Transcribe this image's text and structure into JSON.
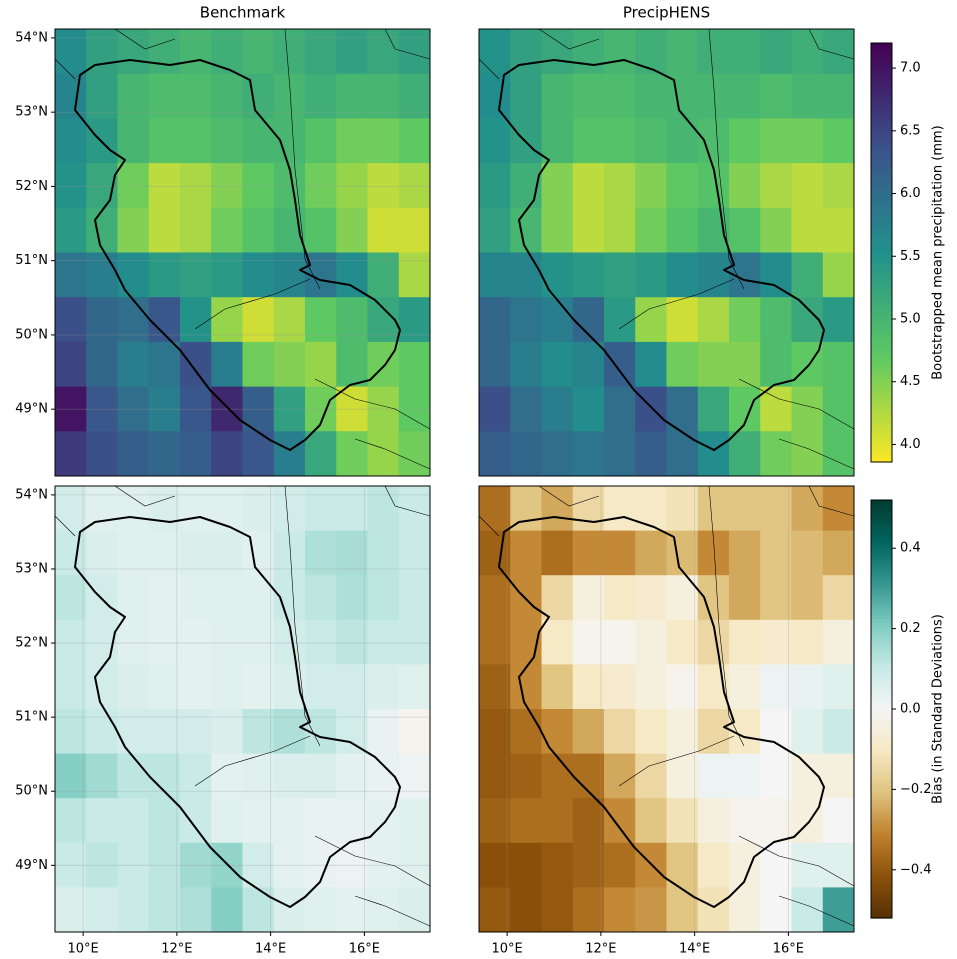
{
  "chart_data": [
    {
      "type": "heatmap",
      "title": "Benchmark",
      "colormap": "viridis_r",
      "xlim": [
        9.4,
        17.4
      ],
      "ylim": [
        48.1,
        54.12
      ],
      "yticks": [
        {
          "value": 49,
          "label": "49°N"
        },
        {
          "value": 50,
          "label": "50°N"
        },
        {
          "value": 51,
          "label": "51°N"
        },
        {
          "value": 52,
          "label": "52°N"
        },
        {
          "value": 53,
          "label": "53°N"
        },
        {
          "value": 54,
          "label": "54°N"
        }
      ],
      "values": [
        [
          5.6,
          5.3,
          5.2,
          5.1,
          5.0,
          5.1,
          5.0,
          5.1,
          5.2,
          5.3,
          5.2,
          5.3
        ],
        [
          5.7,
          5.3,
          5.0,
          4.9,
          4.9,
          5.0,
          5.1,
          5.0,
          5.1,
          5.0,
          5.0,
          5.1
        ],
        [
          5.6,
          5.4,
          5.0,
          4.8,
          4.8,
          4.9,
          5.0,
          5.0,
          4.8,
          4.6,
          4.6,
          4.7
        ],
        [
          5.5,
          5.2,
          4.6,
          4.2,
          4.3,
          4.5,
          4.7,
          4.9,
          4.6,
          4.4,
          4.2,
          4.3
        ],
        [
          5.4,
          5.1,
          4.5,
          4.2,
          4.3,
          4.6,
          4.8,
          5.0,
          4.8,
          4.5,
          4.1,
          4.1
        ],
        [
          5.9,
          5.8,
          5.6,
          5.4,
          5.3,
          5.4,
          5.6,
          5.7,
          5.9,
          5.6,
          5.1,
          4.3
        ],
        [
          6.4,
          6.1,
          6.0,
          6.3,
          5.5,
          4.4,
          4.1,
          4.3,
          4.7,
          4.9,
          5.2,
          5.4
        ],
        [
          6.5,
          6.1,
          5.8,
          5.9,
          6.4,
          5.8,
          4.6,
          4.5,
          4.4,
          4.9,
          4.6,
          4.7
        ],
        [
          7.0,
          6.3,
          6.0,
          5.8,
          6.3,
          6.8,
          6.2,
          5.3,
          4.6,
          4.1,
          4.4,
          4.7
        ],
        [
          6.6,
          6.4,
          6.2,
          6.1,
          6.2,
          6.5,
          6.3,
          5.8,
          5.2,
          4.6,
          4.4,
          4.6
        ]
      ]
    },
    {
      "type": "heatmap",
      "title": "PrecipHENS",
      "colormap": "viridis_r",
      "xlim": [
        9.4,
        17.4
      ],
      "ylim": [
        48.1,
        54.12
      ],
      "values": [
        [
          5.5,
          5.3,
          5.2,
          5.1,
          5.0,
          5.1,
          5.0,
          5.1,
          5.1,
          5.2,
          5.1,
          5.2
        ],
        [
          5.6,
          5.3,
          5.0,
          4.9,
          4.9,
          5.0,
          5.0,
          5.0,
          5.0,
          4.9,
          5.0,
          5.0
        ],
        [
          5.5,
          5.3,
          5.0,
          4.8,
          4.8,
          4.9,
          5.0,
          4.9,
          4.7,
          4.6,
          4.6,
          4.7
        ],
        [
          5.4,
          5.1,
          4.5,
          4.2,
          4.3,
          4.5,
          4.7,
          4.8,
          4.5,
          4.3,
          4.2,
          4.3
        ],
        [
          5.3,
          5.0,
          4.5,
          4.2,
          4.3,
          4.6,
          4.8,
          5.0,
          4.8,
          4.5,
          4.2,
          4.2
        ],
        [
          5.7,
          5.7,
          5.5,
          5.4,
          5.3,
          5.4,
          5.6,
          5.7,
          5.9,
          5.6,
          5.1,
          4.4
        ],
        [
          6.1,
          5.9,
          5.8,
          6.1,
          5.4,
          4.4,
          4.1,
          4.3,
          4.6,
          4.9,
          5.2,
          5.4
        ],
        [
          6.1,
          5.8,
          5.6,
          5.7,
          6.2,
          5.6,
          4.6,
          4.5,
          4.5,
          4.9,
          4.7,
          4.8
        ],
        [
          6.4,
          6.0,
          5.8,
          5.6,
          6.0,
          6.4,
          6.0,
          5.2,
          4.7,
          4.2,
          4.5,
          4.8
        ],
        [
          6.2,
          6.1,
          6.0,
          5.9,
          6.0,
          6.2,
          6.0,
          5.6,
          5.1,
          4.6,
          4.5,
          4.8
        ]
      ]
    },
    {
      "type": "heatmap",
      "colormap": "BrBG",
      "xlim": [
        9.4,
        17.4
      ],
      "ylim": [
        48.1,
        54.12
      ],
      "yticks": [
        {
          "value": 49,
          "label": "49°N"
        },
        {
          "value": 50,
          "label": "50°N"
        },
        {
          "value": 51,
          "label": "51°N"
        },
        {
          "value": 52,
          "label": "52°N"
        },
        {
          "value": 53,
          "label": "53°N"
        },
        {
          "value": 54,
          "label": "54°N"
        }
      ],
      "xticks": [
        {
          "value": 10,
          "label": "10°E"
        },
        {
          "value": 12,
          "label": "12°E"
        },
        {
          "value": 14,
          "label": "14°E"
        },
        {
          "value": 16,
          "label": "16°E"
        }
      ],
      "values": [
        [
          0.08,
          0.05,
          0.05,
          0.06,
          0.05,
          0.05,
          0.06,
          0.08,
          0.1,
          0.1,
          0.12,
          0.1
        ],
        [
          0.1,
          0.06,
          0.05,
          0.05,
          0.06,
          0.06,
          0.05,
          0.1,
          0.14,
          0.15,
          0.12,
          0.1
        ],
        [
          0.12,
          0.08,
          0.05,
          0.04,
          0.05,
          0.05,
          0.05,
          0.1,
          0.12,
          0.14,
          0.12,
          0.1
        ],
        [
          0.1,
          0.08,
          0.05,
          0.04,
          0.04,
          0.05,
          0.05,
          0.08,
          0.1,
          0.12,
          0.1,
          0.1
        ],
        [
          0.1,
          0.08,
          0.06,
          0.05,
          0.04,
          0.05,
          0.04,
          0.06,
          0.08,
          0.08,
          0.06,
          0.05
        ],
        [
          0.12,
          0.1,
          0.08,
          0.08,
          0.08,
          0.06,
          0.12,
          0.14,
          0.12,
          0.08,
          0.03,
          -0.02
        ],
        [
          0.2,
          0.16,
          0.12,
          0.12,
          0.1,
          0.04,
          0.05,
          0.06,
          0.06,
          0.04,
          0.03,
          0.02
        ],
        [
          0.12,
          0.1,
          0.1,
          0.12,
          0.1,
          0.05,
          0.04,
          0.04,
          0.03,
          0.03,
          0.04,
          0.05
        ],
        [
          0.1,
          0.12,
          0.1,
          0.12,
          0.16,
          0.18,
          0.08,
          0.04,
          0.03,
          0.02,
          0.04,
          0.05
        ],
        [
          0.06,
          0.08,
          0.1,
          0.12,
          0.14,
          0.2,
          0.12,
          0.06,
          0.05,
          0.04,
          0.05,
          0.06
        ]
      ]
    },
    {
      "type": "heatmap",
      "colormap": "BrBG",
      "xlim": [
        9.4,
        17.4
      ],
      "ylim": [
        48.1,
        54.12
      ],
      "xticks": [
        {
          "value": 10,
          "label": "10°E"
        },
        {
          "value": 12,
          "label": "12°E"
        },
        {
          "value": 14,
          "label": "14°E"
        },
        {
          "value": 16,
          "label": "16°E"
        }
      ],
      "values": [
        [
          -0.35,
          -0.2,
          -0.25,
          -0.15,
          -0.1,
          -0.1,
          -0.12,
          -0.2,
          -0.2,
          -0.2,
          -0.25,
          -0.3
        ],
        [
          -0.38,
          -0.3,
          -0.35,
          -0.3,
          -0.3,
          -0.25,
          -0.22,
          -0.3,
          -0.25,
          -0.2,
          -0.22,
          -0.25
        ],
        [
          -0.35,
          -0.3,
          -0.15,
          -0.05,
          -0.1,
          -0.08,
          -0.05,
          -0.2,
          -0.25,
          -0.2,
          -0.22,
          -0.15
        ],
        [
          -0.35,
          -0.3,
          -0.1,
          -0.02,
          -0.02,
          -0.05,
          -0.1,
          -0.15,
          -0.1,
          -0.08,
          -0.1,
          -0.05
        ],
        [
          -0.38,
          -0.3,
          -0.2,
          -0.1,
          -0.08,
          -0.05,
          -0.02,
          -0.1,
          -0.05,
          0.02,
          0.03,
          0.05
        ],
        [
          -0.4,
          -0.35,
          -0.3,
          -0.25,
          -0.15,
          -0.1,
          -0.05,
          -0.15,
          -0.1,
          0.0,
          0.05,
          0.1
        ],
        [
          -0.4,
          -0.38,
          -0.35,
          -0.35,
          -0.25,
          -0.15,
          -0.05,
          0.02,
          0.02,
          0.0,
          -0.05,
          -0.05
        ],
        [
          -0.38,
          -0.35,
          -0.35,
          -0.38,
          -0.3,
          -0.2,
          -0.12,
          -0.05,
          -0.02,
          -0.02,
          -0.05,
          0.0
        ],
        [
          -0.42,
          -0.42,
          -0.4,
          -0.38,
          -0.35,
          -0.3,
          -0.2,
          -0.1,
          -0.05,
          0.0,
          0.05,
          0.05
        ],
        [
          -0.4,
          -0.42,
          -0.4,
          -0.35,
          -0.3,
          -0.28,
          -0.2,
          -0.12,
          -0.05,
          0.0,
          0.1,
          0.3
        ]
      ]
    },
    {
      "type": "colorbar",
      "label": "Bootstrapped mean precipitation (mm)",
      "colormap": "viridis_r",
      "lim": [
        3.86,
        7.2
      ],
      "ticks": [
        {
          "value": 4,
          "label": "4.0"
        },
        4.5,
        {
          "value": 5,
          "label": "5.0"
        },
        5.5,
        {
          "value": 6,
          "label": "6.0"
        },
        6.5,
        {
          "value": 7,
          "label": "7.0"
        }
      ]
    },
    {
      "type": "colorbar",
      "label": "Bias (in Standard Deviations)",
      "colormap": "BrBG",
      "lim": [
        -0.52,
        0.52
      ],
      "ticks": [
        {
          "value": -0.4,
          "label": "−0.4"
        },
        {
          "value": -0.2,
          "label": "−0.2"
        },
        {
          "value": 0,
          "label": "0.0"
        },
        0.2,
        0.4
      ]
    }
  ]
}
